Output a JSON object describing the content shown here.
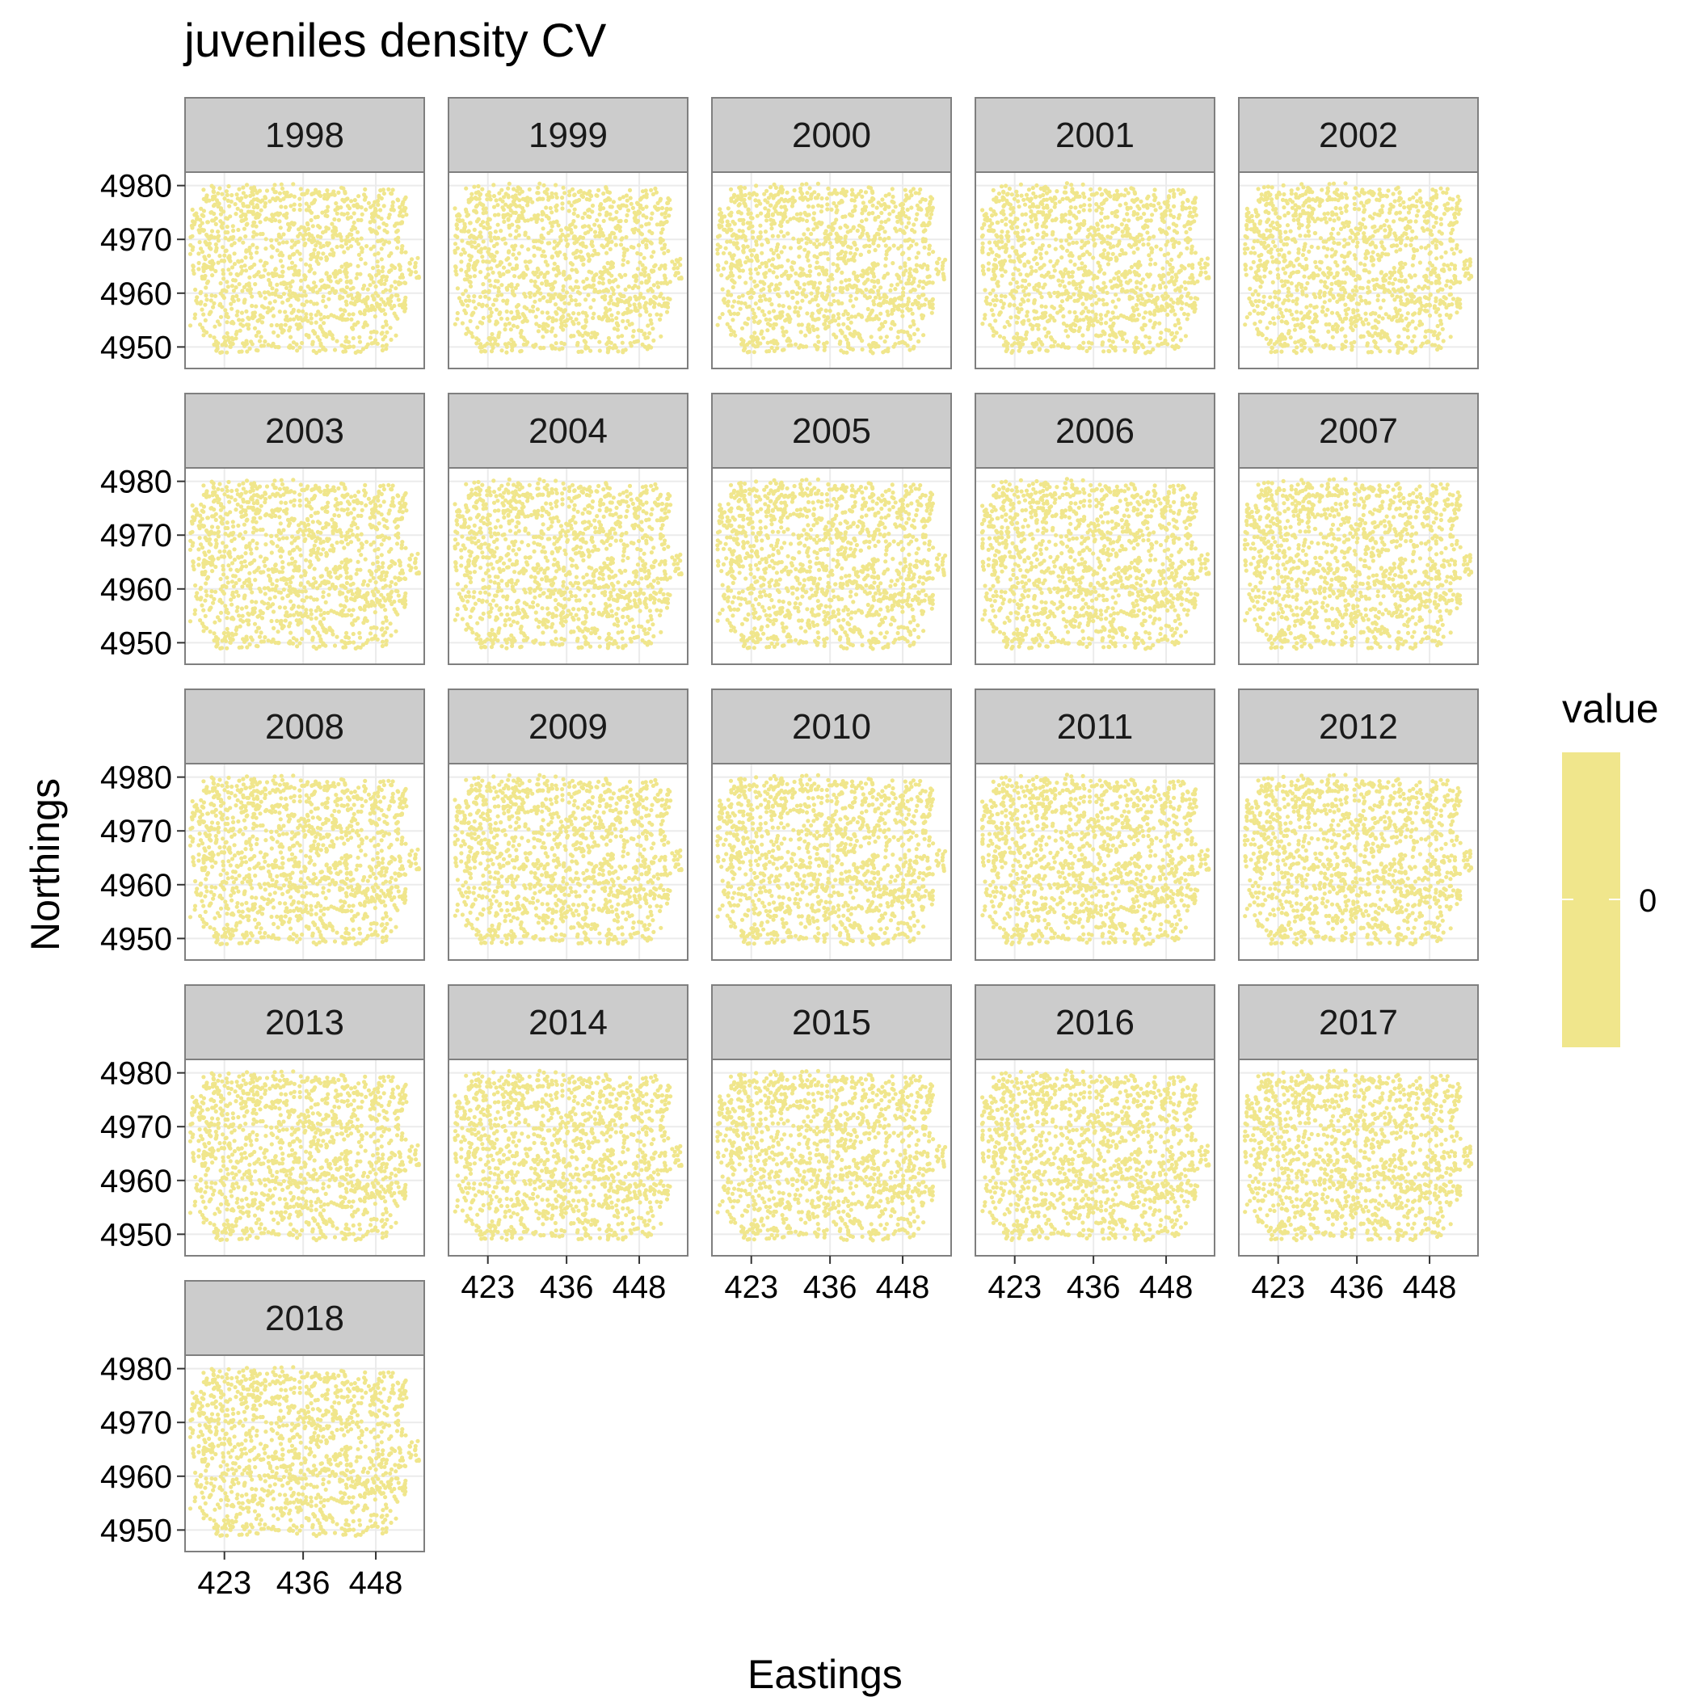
{
  "chart_data": {
    "type": "scatter",
    "title": "juveniles density CV",
    "xlabel": "Eastings",
    "ylabel": "Northings",
    "x_ticks": [
      423,
      436,
      448
    ],
    "y_ticks": [
      4950,
      4960,
      4970,
      4980
    ],
    "xlim": [
      416.5,
      456
    ],
    "ylim": [
      4946,
      4982.5
    ],
    "facets": [
      "1998",
      "1999",
      "2000",
      "2001",
      "2002",
      "2003",
      "2004",
      "2005",
      "2006",
      "2007",
      "2008",
      "2009",
      "2010",
      "2011",
      "2012",
      "2013",
      "2014",
      "2015",
      "2016",
      "2017",
      "2018"
    ],
    "facet_columns": 5,
    "point_color": "#f0e68c",
    "grid": true,
    "legend": {
      "title": "value",
      "tick_labels": [
        "0"
      ],
      "color": "#f0e68c",
      "placement": "right"
    },
    "point_cloud_note_values": "all points share value 0; each panel shows the same survey locations"
  }
}
